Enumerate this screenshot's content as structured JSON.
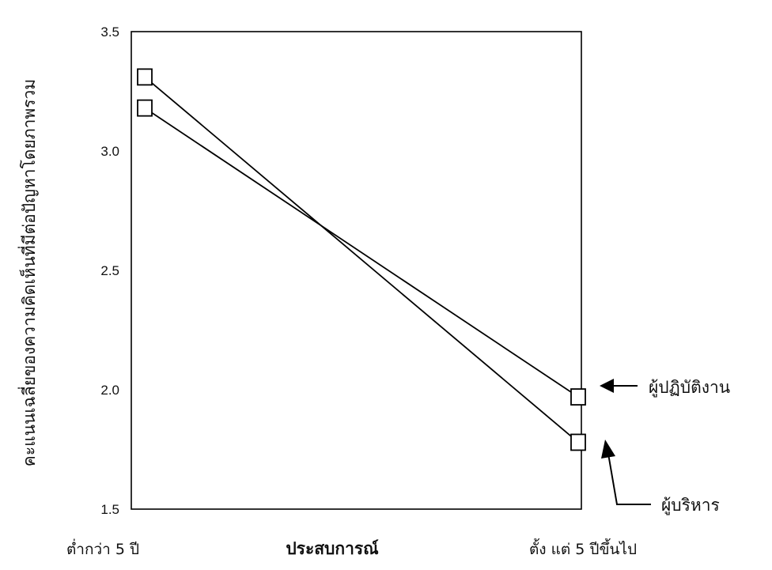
{
  "chart_data": {
    "type": "line",
    "title": "",
    "xlabel": "ประสบการณ์",
    "ylabel": "คะแนนเฉลี่ยของความคิดเห็นที่มีต่อปัญหาโดยภาพรวม",
    "categories": [
      "ต่ำกว่า 5 ปี",
      "ตั้ง แต่  5  ปีขึ้นไป"
    ],
    "ylim": [
      1.5,
      3.5
    ],
    "yticks": [
      "1.5",
      "2.0",
      "2.5",
      "3.0",
      "3.5"
    ],
    "grid": false,
    "series": [
      {
        "name": "ผู้ปฏิบัติงาน",
        "values": [
          3.18,
          1.97
        ],
        "marker": "square"
      },
      {
        "name": "ผู้บริหาร",
        "values": [
          3.31,
          1.78
        ],
        "marker": "square"
      }
    ],
    "annotations": [
      {
        "text": "ผู้ปฏิบัติงาน",
        "series": "ผู้ปฏิบัติงาน",
        "arrow_style": "filled"
      },
      {
        "text": "ผู้บริหาร",
        "series": "ผู้บริหาร",
        "arrow_style": "filled-elbow"
      }
    ],
    "line_color": "#000000",
    "background": "#ffffff"
  }
}
